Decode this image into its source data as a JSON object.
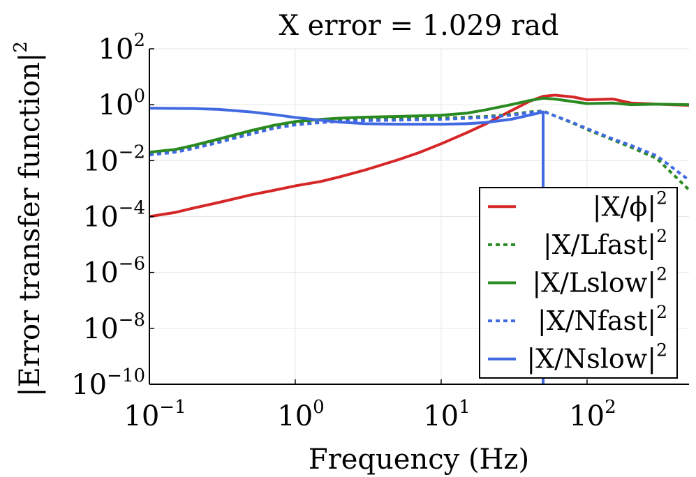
{
  "chart_data": {
    "type": "line",
    "title": "X error = 1.029 rad",
    "xlabel": "Frequency (Hz)",
    "ylabel": "|Error transfer function|",
    "ylabel_exponent": "2",
    "x_scale": "log",
    "y_scale": "log",
    "xlim": [
      0.1,
      500
    ],
    "ylim": [
      1e-10,
      100
    ],
    "x_ticks": [
      {
        "value": 0.1,
        "base": "10",
        "exp": "−1"
      },
      {
        "value": 1,
        "base": "10",
        "exp": "0"
      },
      {
        "value": 10,
        "base": "10",
        "exp": "1"
      },
      {
        "value": 100,
        "base": "10",
        "exp": "2"
      }
    ],
    "y_ticks": [
      {
        "value": 1e-10,
        "base": "10",
        "exp": "−10"
      },
      {
        "value": 1e-08,
        "base": "10",
        "exp": "−8"
      },
      {
        "value": 1e-06,
        "base": "10",
        "exp": "−6"
      },
      {
        "value": 0.0001,
        "base": "10",
        "exp": "−4"
      },
      {
        "value": 0.01,
        "base": "10",
        "exp": "−2"
      },
      {
        "value": 1,
        "base": "10",
        "exp": "0"
      },
      {
        "value": 100,
        "base": "10",
        "exp": "2"
      }
    ],
    "grid": true,
    "legend_position": "lower-right",
    "series": [
      {
        "name": "|X/ϕ|",
        "name_exponent": "2",
        "color": "#d62728",
        "dash": "solid",
        "x": [
          0.1,
          0.15,
          0.2,
          0.3,
          0.5,
          0.7,
          1,
          1.5,
          2,
          3,
          5,
          7,
          10,
          15,
          20,
          30,
          40,
          50,
          60,
          80,
          100,
          150,
          200,
          300,
          500
        ],
        "y": [
          0.0001,
          0.00014,
          0.0002,
          0.00032,
          0.0006,
          0.00085,
          0.00125,
          0.0018,
          0.0026,
          0.0046,
          0.0105,
          0.019,
          0.04,
          0.1,
          0.2,
          0.6,
          1.3,
          2.0,
          2.2,
          1.9,
          1.5,
          1.6,
          1.15,
          1.05,
          0.95
        ]
      },
      {
        "name": "|X/Lfast|",
        "name_exponent": "2",
        "color": "#2a8a22",
        "dash": "dotted",
        "x": [
          0.1,
          0.15,
          0.2,
          0.3,
          0.5,
          0.7,
          1,
          1.5,
          2,
          3,
          5,
          7,
          10,
          20,
          30,
          40,
          50,
          60,
          80,
          100,
          150,
          200,
          300,
          500
        ],
        "y": [
          0.018,
          0.022,
          0.03,
          0.05,
          0.1,
          0.16,
          0.22,
          0.26,
          0.28,
          0.3,
          0.31,
          0.32,
          0.33,
          0.38,
          0.45,
          0.55,
          0.6,
          0.4,
          0.22,
          0.13,
          0.055,
          0.03,
          0.012,
          0.0009
        ]
      },
      {
        "name": "|X/Lslow|",
        "name_exponent": "2",
        "color": "#2a8a22",
        "dash": "solid",
        "x": [
          0.1,
          0.15,
          0.2,
          0.3,
          0.5,
          0.7,
          1,
          1.5,
          2,
          3,
          5,
          7,
          10,
          15,
          20,
          30,
          40,
          50,
          60,
          80,
          100,
          150,
          200,
          300,
          500
        ],
        "y": [
          0.02,
          0.025,
          0.035,
          0.06,
          0.12,
          0.18,
          0.25,
          0.3,
          0.33,
          0.36,
          0.38,
          0.4,
          0.42,
          0.5,
          0.65,
          1.0,
          1.4,
          1.7,
          1.6,
          1.3,
          1.1,
          1.15,
          1.0,
          1.05,
          1.0
        ]
      },
      {
        "name": "|X/Nfast|",
        "name_exponent": "2",
        "color": "#4169e1",
        "dash": "dotted",
        "x": [
          0.1,
          0.15,
          0.2,
          0.3,
          0.5,
          0.7,
          1,
          1.5,
          2,
          3,
          5,
          7,
          10,
          20,
          30,
          40,
          50,
          60,
          80,
          100,
          150,
          200,
          300,
          500
        ],
        "y": [
          0.016,
          0.02,
          0.027,
          0.045,
          0.09,
          0.14,
          0.19,
          0.23,
          0.25,
          0.27,
          0.28,
          0.29,
          0.3,
          0.35,
          0.42,
          0.52,
          0.58,
          0.4,
          0.23,
          0.14,
          0.06,
          0.035,
          0.015,
          0.002
        ]
      },
      {
        "name": "|X/Nslow|",
        "name_exponent": "2",
        "color": "#4169e1",
        "dash": "solid",
        "x": [
          0.1,
          0.2,
          0.3,
          0.5,
          0.7,
          1,
          1.5,
          2,
          3,
          5,
          7,
          10,
          15,
          20,
          30,
          40,
          50,
          50.0001
        ],
        "y": [
          0.75,
          0.73,
          0.68,
          0.55,
          0.45,
          0.35,
          0.28,
          0.24,
          0.21,
          0.2,
          0.2,
          0.2,
          0.21,
          0.23,
          0.3,
          0.42,
          0.55,
          1e-10
        ]
      }
    ]
  }
}
